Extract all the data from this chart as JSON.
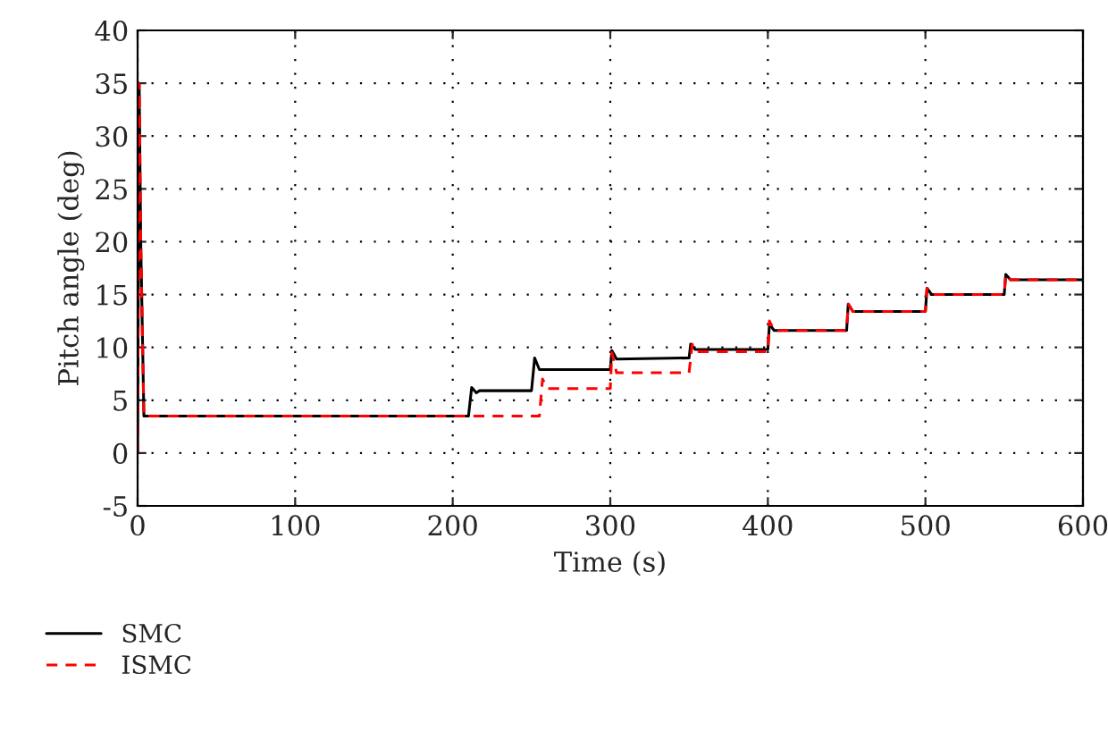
{
  "chart_data": {
    "type": "line",
    "xlabel": "Time (s)",
    "ylabel": "Pitch angle (deg)",
    "xlim": [
      0,
      600
    ],
    "xticks": [
      0,
      100,
      200,
      300,
      400,
      500,
      600
    ],
    "ylim": [
      -5,
      40
    ],
    "yticks": [
      -5,
      0,
      5,
      10,
      15,
      20,
      25,
      30,
      35,
      40
    ],
    "grid": true,
    "legend": "bottom left",
    "series": [
      {
        "name": "SMC",
        "color": "#000000",
        "line_style": "solid",
        "x": [
          0,
          1,
          2,
          4,
          210,
          212,
          215,
          217,
          250,
          252,
          255,
          300,
          301,
          304,
          350,
          351,
          354,
          400,
          401,
          404,
          450,
          451,
          454,
          500,
          501,
          504,
          550,
          551,
          554,
          600
        ],
        "values": [
          0,
          35,
          20,
          3.5,
          3.5,
          6.2,
          5.7,
          5.9,
          5.9,
          9.0,
          7.9,
          7.9,
          9.7,
          8.9,
          9.0,
          10.3,
          9.8,
          9.8,
          12.2,
          11.6,
          11.6,
          14.1,
          13.4,
          13.4,
          15.6,
          15.0,
          15.0,
          16.9,
          16.4,
          16.4
        ]
      },
      {
        "name": "ISMC",
        "color": "#ff0000",
        "line_style": "dashed",
        "x": [
          0,
          1,
          2,
          4,
          255,
          257,
          260,
          300,
          301,
          304,
          350,
          352,
          355,
          400,
          401,
          404,
          450,
          451,
          454,
          500,
          501,
          504,
          550,
          551,
          554,
          600
        ],
        "values": [
          0,
          35,
          20,
          3.5,
          3.5,
          7.0,
          6.1,
          6.1,
          9.5,
          7.6,
          7.6,
          10.3,
          9.6,
          9.6,
          12.5,
          11.6,
          11.6,
          14.1,
          13.4,
          13.4,
          15.6,
          15.0,
          15.0,
          16.9,
          16.4,
          16.4
        ]
      }
    ]
  }
}
